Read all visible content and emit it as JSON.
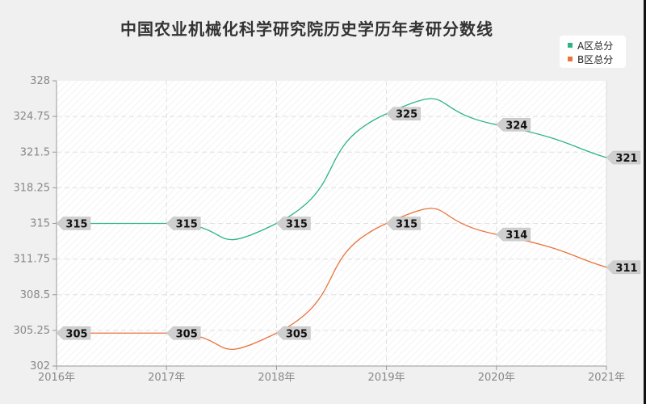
{
  "title": "中国农业机械化科学研究院历史学历年考研分数线",
  "legend": [
    {
      "label": "A区总分",
      "color": "#2db38a"
    },
    {
      "label": "B区总分",
      "color": "#e8743b"
    }
  ],
  "chart_data": {
    "type": "line",
    "title": "中国农业机械化科学研究院历史学历年考研分数线",
    "categories": [
      "2016年",
      "2017年",
      "2018年",
      "2019年",
      "2020年",
      "2021年"
    ],
    "series": [
      {
        "name": "A区总分",
        "color": "#2db38a",
        "values": [
          315,
          315,
          315,
          325,
          324,
          321
        ]
      },
      {
        "name": "B区总分",
        "color": "#e8743b",
        "values": [
          305,
          305,
          305,
          315,
          314,
          311
        ]
      }
    ],
    "yticks": [
      "302",
      "305.25",
      "308.5",
      "311.75",
      "315",
      "318.25",
      "321.5",
      "324.75",
      "328"
    ],
    "ylim": [
      302,
      328
    ],
    "xlabel": "",
    "ylabel": "",
    "grid": true,
    "legend_position": "top-right",
    "smooth": true
  }
}
